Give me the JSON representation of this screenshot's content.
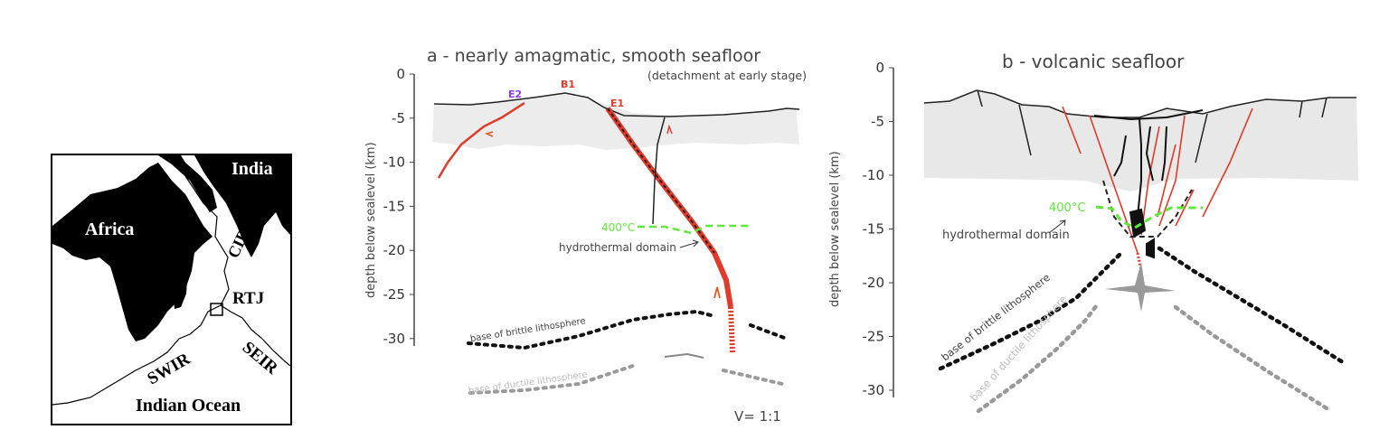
{
  "map": {
    "labels": {
      "africa": "Africa",
      "india": "India",
      "cir": "CIR",
      "rtj": "RTJ",
      "swir": "SWIR",
      "seir": "SEIR",
      "ocean": "Indian Ocean"
    }
  },
  "panel_a": {
    "title": "a - nearly amagmatic, smooth seafloor",
    "subtitle": "(detachment at early stage)",
    "y_axis_label": "depth below sealevel (km)",
    "y_ticks": [
      "0",
      "-5",
      "-10",
      "-15",
      "-20",
      "-25",
      "-30"
    ],
    "labels": {
      "e2": "E2",
      "b1": "B1",
      "e1": "E1",
      "isotherm": "400°C",
      "hydro": "hydrothermal domain",
      "brittle": "base of brittle lithosphere",
      "ductile": "base of ductile lithosphere",
      "scale": "V= 1:1"
    },
    "colors": {
      "e2": "#8a3cf0",
      "fault": "#e03a2a",
      "isotherm": "#5fe83a"
    }
  },
  "panel_b": {
    "title": "b - volcanic seafloor",
    "y_axis_label": "depth below sealevel (km)",
    "y_ticks": [
      "0",
      "-5",
      "-10",
      "-15",
      "-20",
      "-25",
      "-30"
    ],
    "labels": {
      "isotherm": "400°C",
      "hydro": "hydrothermal domain",
      "brittle": "base of brittle lithosphere",
      "ductile": "base of ductile lithosphere"
    }
  }
}
